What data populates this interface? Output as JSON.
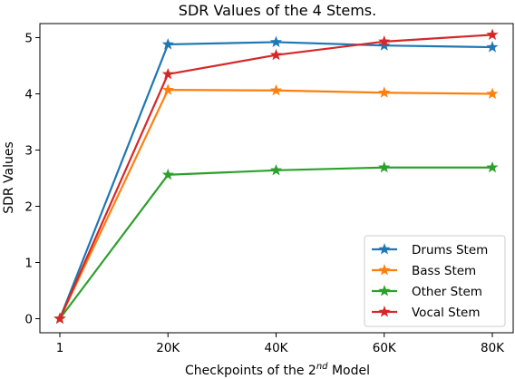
{
  "chart_data": {
    "type": "line",
    "title": "SDR Values of the 4 Stems.",
    "xlabel_main": "Checkpoints of the 2",
    "xlabel_sup": "nd",
    "xlabel_tail": " Model",
    "ylabel": "SDR Values",
    "categories": [
      "1",
      "20K",
      "40K",
      "60K",
      "80K"
    ],
    "ylim": [
      -0.25,
      5.25
    ],
    "yticks": [
      0,
      1,
      2,
      3,
      4,
      5
    ],
    "grid": false,
    "legend_position": "lower-right",
    "marker": "star",
    "series": [
      {
        "name": "Drums Stem",
        "color": "#1f77b4",
        "values": [
          0,
          4.88,
          4.92,
          4.86,
          4.83
        ]
      },
      {
        "name": "Bass Stem",
        "color": "#ff7f0e",
        "values": [
          0,
          4.07,
          4.06,
          4.02,
          4.0
        ]
      },
      {
        "name": "Other Stem",
        "color": "#2ca02c",
        "values": [
          0,
          2.56,
          2.64,
          2.69,
          2.69
        ]
      },
      {
        "name": "Vocal Stem",
        "color": "#d62728",
        "values": [
          0,
          4.35,
          4.69,
          4.93,
          5.05
        ]
      }
    ]
  }
}
